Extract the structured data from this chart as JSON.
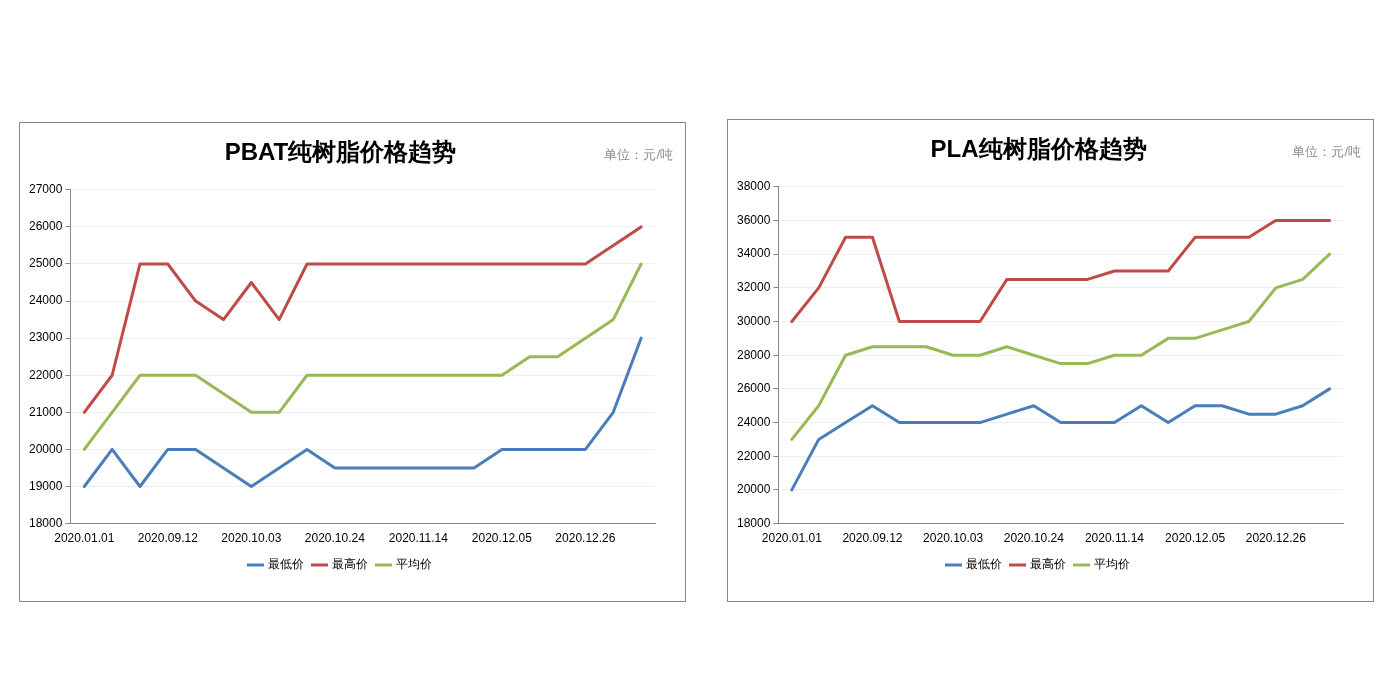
{
  "chart_data": [
    {
      "type": "line",
      "title": "PBAT纯树脂价格趋势",
      "annotations": [
        "单位：元/吨"
      ],
      "categories": [
        "2020.01.01",
        null,
        null,
        "2020.09.12",
        null,
        null,
        "2020.10.03",
        null,
        null,
        "2020.10.24",
        null,
        null,
        "2020.11.14",
        null,
        null,
        "2020.12.05",
        null,
        null,
        "2020.12.26",
        null,
        null
      ],
      "series": [
        {
          "name": "最低价",
          "color": "#4a7ebb",
          "values": [
            19000,
            20000,
            19000,
            20000,
            20000,
            19500,
            19000,
            19500,
            20000,
            19500,
            19500,
            19500,
            19500,
            19500,
            19500,
            20000,
            20000,
            20000,
            20000,
            21000,
            23000
          ]
        },
        {
          "name": "最高价",
          "color": "#be4b48",
          "values": [
            21000,
            22000,
            25000,
            25000,
            24000,
            23500,
            24500,
            23500,
            25000,
            25000,
            25000,
            25000,
            25000,
            25000,
            25000,
            25000,
            25000,
            25000,
            25000,
            25500,
            26000
          ]
        },
        {
          "name": "平均价",
          "color": "#98b954",
          "values": [
            20000,
            21000,
            22000,
            22000,
            22000,
            21500,
            21000,
            21000,
            22000,
            22000,
            22000,
            22000,
            22000,
            22000,
            22000,
            22000,
            22500,
            22500,
            23000,
            23500,
            25000
          ]
        }
      ],
      "ylim": [
        18000,
        27000
      ],
      "yticks": [
        18000,
        19000,
        20000,
        21000,
        22000,
        23000,
        24000,
        25000,
        26000,
        27000
      ],
      "grid": "y",
      "legend": "bottom",
      "marker": "none",
      "line_style": "solid"
    },
    {
      "type": "line",
      "title": "PLA纯树脂价格趋势",
      "annotations": [
        "单位：元/吨"
      ],
      "categories": [
        "2020.01.01",
        null,
        null,
        "2020.09.12",
        null,
        null,
        "2020.10.03",
        null,
        null,
        "2020.10.24",
        null,
        null,
        "2020.11.14",
        null,
        null,
        "2020.12.05",
        null,
        null,
        "2020.12.26",
        null,
        null
      ],
      "series": [
        {
          "name": "最低价",
          "color": "#4a7ebb",
          "values": [
            20000,
            23000,
            24000,
            25000,
            24000,
            24000,
            24000,
            24000,
            24500,
            25000,
            24000,
            24000,
            24000,
            25000,
            24000,
            25000,
            25000,
            24500,
            24500,
            25000,
            26000
          ]
        },
        {
          "name": "最高价",
          "color": "#be4b48",
          "values": [
            30000,
            32000,
            35000,
            35000,
            30000,
            30000,
            30000,
            30000,
            32500,
            32500,
            32500,
            32500,
            33000,
            33000,
            33000,
            35000,
            35000,
            35000,
            36000,
            36000,
            36000
          ]
        },
        {
          "name": "平均价",
          "color": "#98b954",
          "values": [
            23000,
            25000,
            28000,
            28500,
            28500,
            28500,
            28000,
            28000,
            28500,
            28000,
            27500,
            27500,
            28000,
            28000,
            29000,
            29000,
            29500,
            30000,
            32000,
            32500,
            34000
          ]
        }
      ],
      "ylim": [
        18000,
        38000
      ],
      "yticks": [
        18000,
        20000,
        22000,
        24000,
        26000,
        28000,
        30000,
        32000,
        34000,
        36000,
        38000
      ],
      "grid": "y",
      "legend": "bottom",
      "marker": "none",
      "line_style": "solid"
    }
  ]
}
